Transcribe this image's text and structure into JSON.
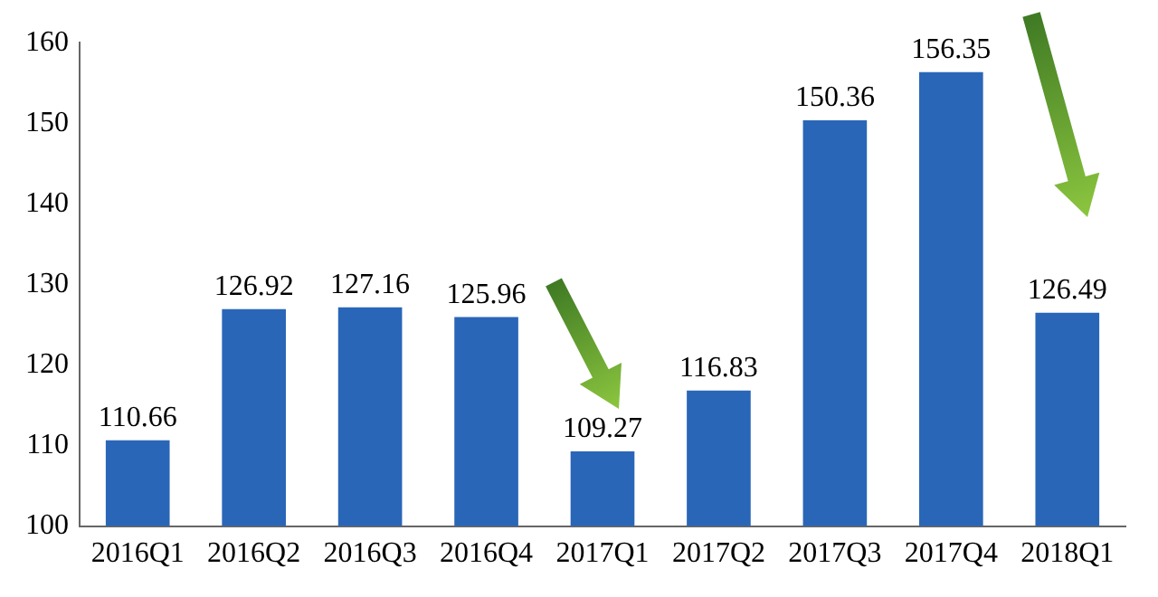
{
  "chart_data": {
    "type": "bar",
    "categories": [
      "2016Q1",
      "2016Q2",
      "2016Q3",
      "2016Q4",
      "2017Q1",
      "2017Q2",
      "2017Q3",
      "2017Q4",
      "2018Q1"
    ],
    "values": [
      110.66,
      126.92,
      127.16,
      125.96,
      109.27,
      116.83,
      150.36,
      156.35,
      126.49
    ],
    "color": "#2a66b8",
    "ylim": [
      100,
      160
    ],
    "yticks": [
      100,
      110,
      120,
      130,
      140,
      150,
      160
    ],
    "data_labels": true,
    "grid": false,
    "legend": false
  }
}
